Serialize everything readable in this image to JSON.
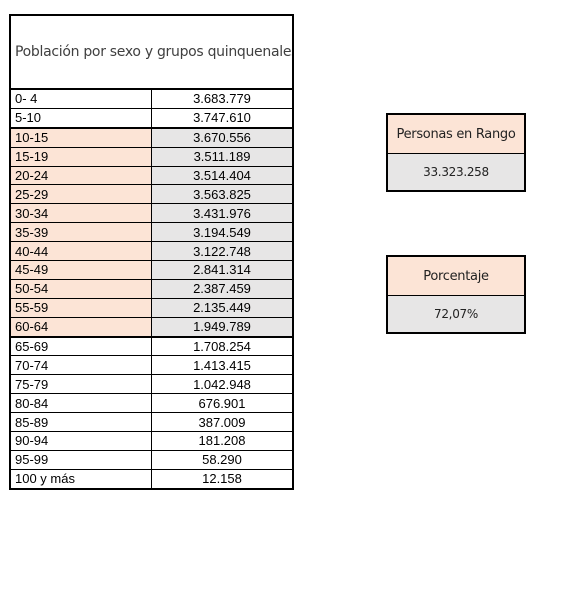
{
  "table": {
    "header": "Población por sexo y grupos quinquenales de edad en todo el país",
    "rows": [
      {
        "age": "0- 4",
        "value": "3.683.779",
        "highlighted": false
      },
      {
        "age": "5-10",
        "value": "3.747.610",
        "highlighted": false
      },
      {
        "age": "10-15",
        "value": "3.670.556",
        "highlighted": true
      },
      {
        "age": "15-19",
        "value": "3.511.189",
        "highlighted": true
      },
      {
        "age": "20-24",
        "value": "3.514.404",
        "highlighted": true
      },
      {
        "age": "25-29",
        "value": "3.563.825",
        "highlighted": true
      },
      {
        "age": "30-34",
        "value": "3.431.976",
        "highlighted": true
      },
      {
        "age": "35-39",
        "value": "3.194.549",
        "highlighted": true
      },
      {
        "age": "40-44",
        "value": "3.122.748",
        "highlighted": true
      },
      {
        "age": "45-49",
        "value": "2.841.314",
        "highlighted": true
      },
      {
        "age": "50-54",
        "value": "2.387.459",
        "highlighted": true
      },
      {
        "age": "55-59",
        "value": "2.135.449",
        "highlighted": true
      },
      {
        "age": "60-64",
        "value": "1.949.789",
        "highlighted": true
      },
      {
        "age": "65-69",
        "value": "1.708.254",
        "highlighted": false
      },
      {
        "age": "70-74",
        "value": "1.413.415",
        "highlighted": false
      },
      {
        "age": "75-79",
        "value": "1.042.948",
        "highlighted": false
      },
      {
        "age": "80-84",
        "value": "676.901",
        "highlighted": false
      },
      {
        "age": "85-89",
        "value": "387.009",
        "highlighted": false
      },
      {
        "age": "90-94",
        "value": "181.208",
        "highlighted": false
      },
      {
        "age": "95-99",
        "value": "58.290",
        "highlighted": false
      },
      {
        "age": "100 y más",
        "value": "12.158",
        "highlighted": false
      }
    ]
  },
  "range_box": {
    "label": "Personas en Rango",
    "value": "33.323.258"
  },
  "percent_box": {
    "label": "Porcentaje",
    "value": "72,07%"
  },
  "colors": {
    "highlight_label": "#fce4d6",
    "highlight_value": "#e7e6e6"
  }
}
